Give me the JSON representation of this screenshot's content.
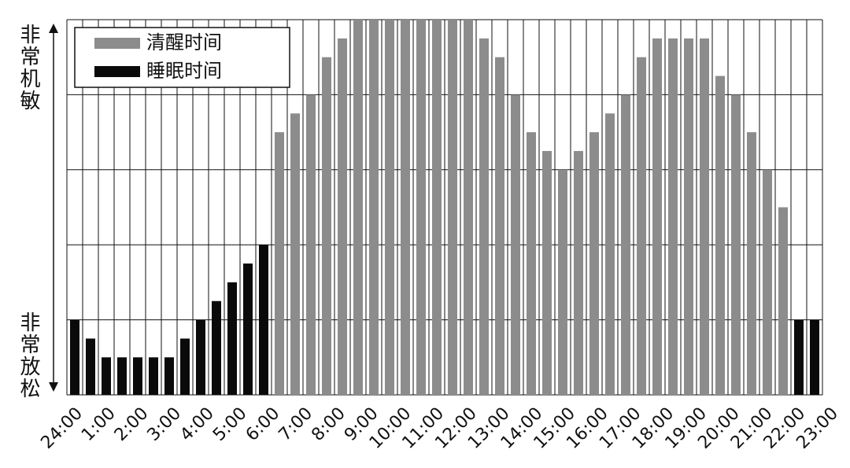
{
  "chart_data": {
    "type": "bar",
    "y_top_label": "非常机敏",
    "y_bottom_label": "非常放松",
    "categories": [
      "24:00",
      null,
      "1:00",
      null,
      "2:00",
      null,
      "3:00",
      null,
      "4:00",
      null,
      "5:00",
      null,
      "6:00",
      null,
      "7:00",
      null,
      "8:00",
      null,
      "9:00",
      null,
      "10:00",
      null,
      "11:00",
      null,
      "12:00",
      null,
      "13:00",
      null,
      "14:00",
      null,
      "15:00",
      null,
      "16:00",
      null,
      "17:00",
      null,
      "18:00",
      null,
      "19:00",
      null,
      "20:00",
      null,
      "21:00",
      null,
      "22:00",
      null,
      "23:00",
      null
    ],
    "series": [
      {
        "name": "清醒时间",
        "color": "#8c8c8c",
        "values": [
          null,
          null,
          null,
          null,
          null,
          null,
          null,
          null,
          null,
          null,
          null,
          null,
          null,
          3.5,
          3.75,
          4,
          4.5,
          4.75,
          5,
          5,
          5,
          5,
          5,
          5,
          5,
          5,
          4.75,
          4.5,
          4,
          3.5,
          3.25,
          3,
          3.25,
          3.5,
          3.75,
          4,
          4.5,
          4.75,
          4.75,
          4.75,
          4.75,
          4.25,
          4,
          3.5,
          3,
          2.5,
          null,
          null
        ]
      },
      {
        "name": "睡眠时间",
        "color": "#0a0a0a",
        "values": [
          1,
          0.75,
          0.5,
          0.5,
          0.5,
          0.5,
          0.5,
          0.75,
          1,
          1.25,
          1.5,
          1.75,
          2,
          null,
          null,
          null,
          null,
          null,
          null,
          null,
          null,
          null,
          null,
          null,
          null,
          null,
          null,
          null,
          null,
          null,
          null,
          null,
          null,
          null,
          null,
          null,
          null,
          null,
          null,
          null,
          null,
          null,
          null,
          null,
          null,
          null,
          1,
          1
        ]
      }
    ],
    "ylim": [
      0,
      5
    ],
    "yticks": [
      0,
      1,
      2,
      3,
      4,
      5
    ],
    "grid": true,
    "legend": "upper-left"
  }
}
